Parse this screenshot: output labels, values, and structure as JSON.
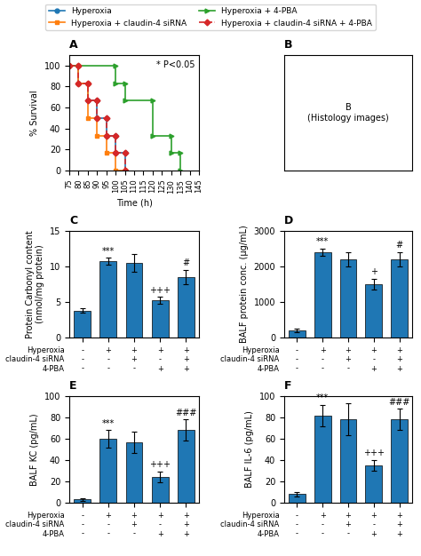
{
  "chart_data": [
    {
      "type": "line",
      "title": "A",
      "xlabel": "Time (h)",
      "ylabel": "% Survival",
      "xlim": [
        75,
        145
      ],
      "ylim": [
        0,
        110
      ],
      "xticks": [
        75,
        80,
        85,
        90,
        95,
        100,
        105,
        110,
        115,
        120,
        125,
        130,
        135,
        140,
        145
      ],
      "yticks": [
        0,
        20,
        40,
        60,
        80,
        100
      ],
      "annotation": "* P<0.05",
      "legend": "upper center",
      "series": [
        {
          "name": "Hyperoxia",
          "marker": "circle",
          "line_style": "solid",
          "x": [
            75,
            80,
            80,
            85,
            85,
            90,
            90,
            95,
            95,
            100,
            100,
            105,
            105
          ],
          "values": [
            100,
            100,
            83,
            83,
            67,
            67,
            50,
            50,
            33,
            33,
            17,
            17,
            0
          ]
        },
        {
          "name": "Hyperoxia + claudin-4 siRNA",
          "marker": "square",
          "line_style": "solid",
          "x": [
            75,
            80,
            80,
            85,
            85,
            90,
            90,
            95,
            95,
            100,
            100,
            105,
            105
          ],
          "values": [
            100,
            100,
            83,
            83,
            50,
            50,
            33,
            33,
            17,
            17,
            0,
            0,
            0
          ]
        },
        {
          "name": "Hyperoxia + 4-PBA",
          "marker": "triangle_right",
          "line_style": "solid",
          "x": [
            75,
            100,
            100,
            105,
            105,
            120,
            120,
            130,
            130,
            135,
            135
          ],
          "values": [
            100,
            100,
            83,
            83,
            67,
            67,
            33,
            33,
            17,
            17,
            0
          ]
        },
        {
          "name": "Hyperoxia + claudin-4 siRNA + 4-PBA",
          "marker": "diamond",
          "line_style": "dashed",
          "x": [
            75,
            80,
            80,
            85,
            85,
            90,
            90,
            95,
            95,
            100,
            100,
            105,
            105
          ],
          "values": [
            100,
            100,
            83,
            83,
            67,
            67,
            50,
            50,
            33,
            33,
            17,
            17,
            0
          ]
        }
      ]
    },
    {
      "type": "text",
      "title": "B",
      "annotation": "B\n(Histology images)",
      "tick_labels": false
    },
    {
      "type": "bar",
      "title": "C",
      "ylabel": "Protein Carbonyl content\n(nmol/mg protein)",
      "categories": [
        "-\n-\n-",
        "+\n-\n-",
        "+\n+\n-",
        "+\n-\n+",
        "+\n+\n+"
      ],
      "annotation": "Hyperoxia\nclaudin-4 siRNA\n4-PBA",
      "values": [
        3.8,
        10.7,
        10.5,
        5.2,
        8.5
      ],
      "errors": [
        0.3,
        0.5,
        1.2,
        0.5,
        1.0
      ],
      "annotations": [
        null,
        "***",
        null,
        "+++",
        "#"
      ],
      "ylim": [
        0,
        15
      ],
      "yticks": [
        0,
        5,
        10,
        15
      ]
    },
    {
      "type": "bar",
      "title": "D",
      "ylabel": "BALF protein conc. (μg/mL)",
      "categories": [
        "-\n-\n-",
        "+\n-\n-",
        "+\n+\n-",
        "+\n-\n+",
        "+\n+\n+"
      ],
      "annotation": "Hyperoxia\nclaudin-4 siRNA\n4-PBA",
      "values": [
        200,
        2400,
        2200,
        1500,
        2200
      ],
      "errors": [
        50,
        100,
        200,
        150,
        200
      ],
      "annotations": [
        null,
        "***",
        null,
        "+",
        "#"
      ],
      "ylim": [
        0,
        3000
      ],
      "yticks": [
        0,
        1000,
        2000,
        3000
      ]
    },
    {
      "type": "bar",
      "title": "E",
      "ylabel": "BALF KC (pg/mL)",
      "categories": [
        "-\n-\n-",
        "+\n-\n-",
        "+\n+\n-",
        "+\n-\n+",
        "+\n+\n+"
      ],
      "annotation": "Hyperoxia\nclaudin-4 siRNA\n4-PBA",
      "values": [
        3,
        60,
        57,
        24,
        68
      ],
      "errors": [
        1,
        8,
        10,
        5,
        10
      ],
      "annotations": [
        null,
        "***",
        null,
        "+++",
        "###"
      ],
      "ylim": [
        0,
        100
      ],
      "yticks": [
        0,
        20,
        40,
        60,
        80,
        100
      ]
    },
    {
      "type": "bar",
      "title": "F",
      "ylabel": "BALF IL-6 (pg/mL)",
      "categories": [
        "-\n-\n-",
        "+\n-\n-",
        "+\n+\n-",
        "+\n-\n+",
        "+\n+\n+"
      ],
      "annotation": "Hyperoxia\nclaudin-4 siRNA\n4-PBA",
      "values": [
        8,
        82,
        78,
        35,
        78
      ],
      "errors": [
        2,
        10,
        15,
        5,
        10
      ],
      "annotations": [
        null,
        "***",
        null,
        "+++",
        "###"
      ],
      "ylim": [
        0,
        100
      ],
      "yticks": [
        0,
        20,
        40,
        60,
        80,
        100
      ]
    }
  ]
}
